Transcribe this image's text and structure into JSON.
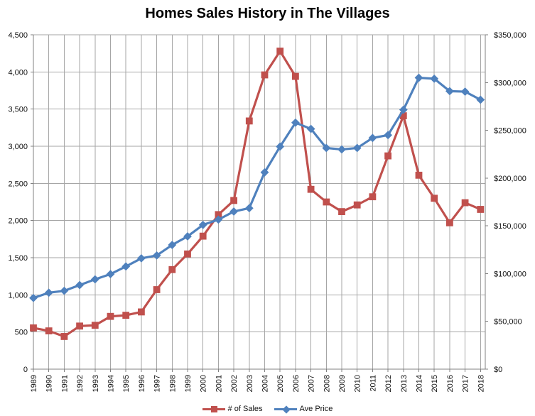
{
  "chart_data": {
    "type": "line",
    "title": "Homes Sales History in The Villages",
    "x": [
      "1989",
      "1990",
      "1991",
      "1992",
      "1993",
      "1994",
      "1995",
      "1996",
      "1997",
      "1998",
      "1999",
      "2000",
      "2001",
      "2002",
      "2003",
      "2004",
      "2005",
      "2006",
      "2007",
      "2008",
      "2009",
      "2010",
      "2011",
      "2012",
      "2013",
      "2014",
      "2015",
      "2016",
      "2017",
      "2018"
    ],
    "series": [
      {
        "name": "# of Sales",
        "axis": "left",
        "color": "#C0504D",
        "marker": "square",
        "values": [
          555,
          515,
          440,
          580,
          590,
          710,
          725,
          770,
          1070,
          1340,
          1550,
          1790,
          2080,
          2270,
          3340,
          3960,
          4280,
          3940,
          2420,
          2250,
          2120,
          2210,
          2320,
          2870,
          3410,
          2610,
          2300,
          1970,
          2240,
          2150
        ]
      },
      {
        "name": "Ave Price",
        "axis": "right",
        "color": "#4F81BD",
        "marker": "diamond",
        "values": [
          74500,
          80000,
          82000,
          88000,
          94000,
          99500,
          107500,
          116000,
          119000,
          130000,
          139000,
          151000,
          156500,
          165000,
          168500,
          206000,
          233000,
          258000,
          251500,
          231500,
          230000,
          231500,
          242000,
          245000,
          271500,
          305000,
          304000,
          291000,
          290500,
          282000
        ]
      }
    ],
    "left_axis": {
      "min": 0,
      "max": 4500,
      "step": 500,
      "tick_labels": [
        "0",
        "500",
        "1,000",
        "1,500",
        "2,000",
        "2,500",
        "3,000",
        "3,500",
        "4,000",
        "4,500"
      ]
    },
    "right_axis": {
      "min": 0,
      "max": 350000,
      "step": 50000,
      "tick_labels": [
        "$0",
        "$50,000",
        "$100,000",
        "$150,000",
        "$200,000",
        "$250,000",
        "$300,000",
        "$350,000"
      ]
    },
    "legend_position": "bottom",
    "grid": true
  },
  "colors": {
    "sales_series": "#C0504D",
    "price_series": "#4F81BD",
    "gridline": "#A6A6A6",
    "axis": "#808080",
    "background": "#FFFFFF",
    "text": "#111111"
  }
}
